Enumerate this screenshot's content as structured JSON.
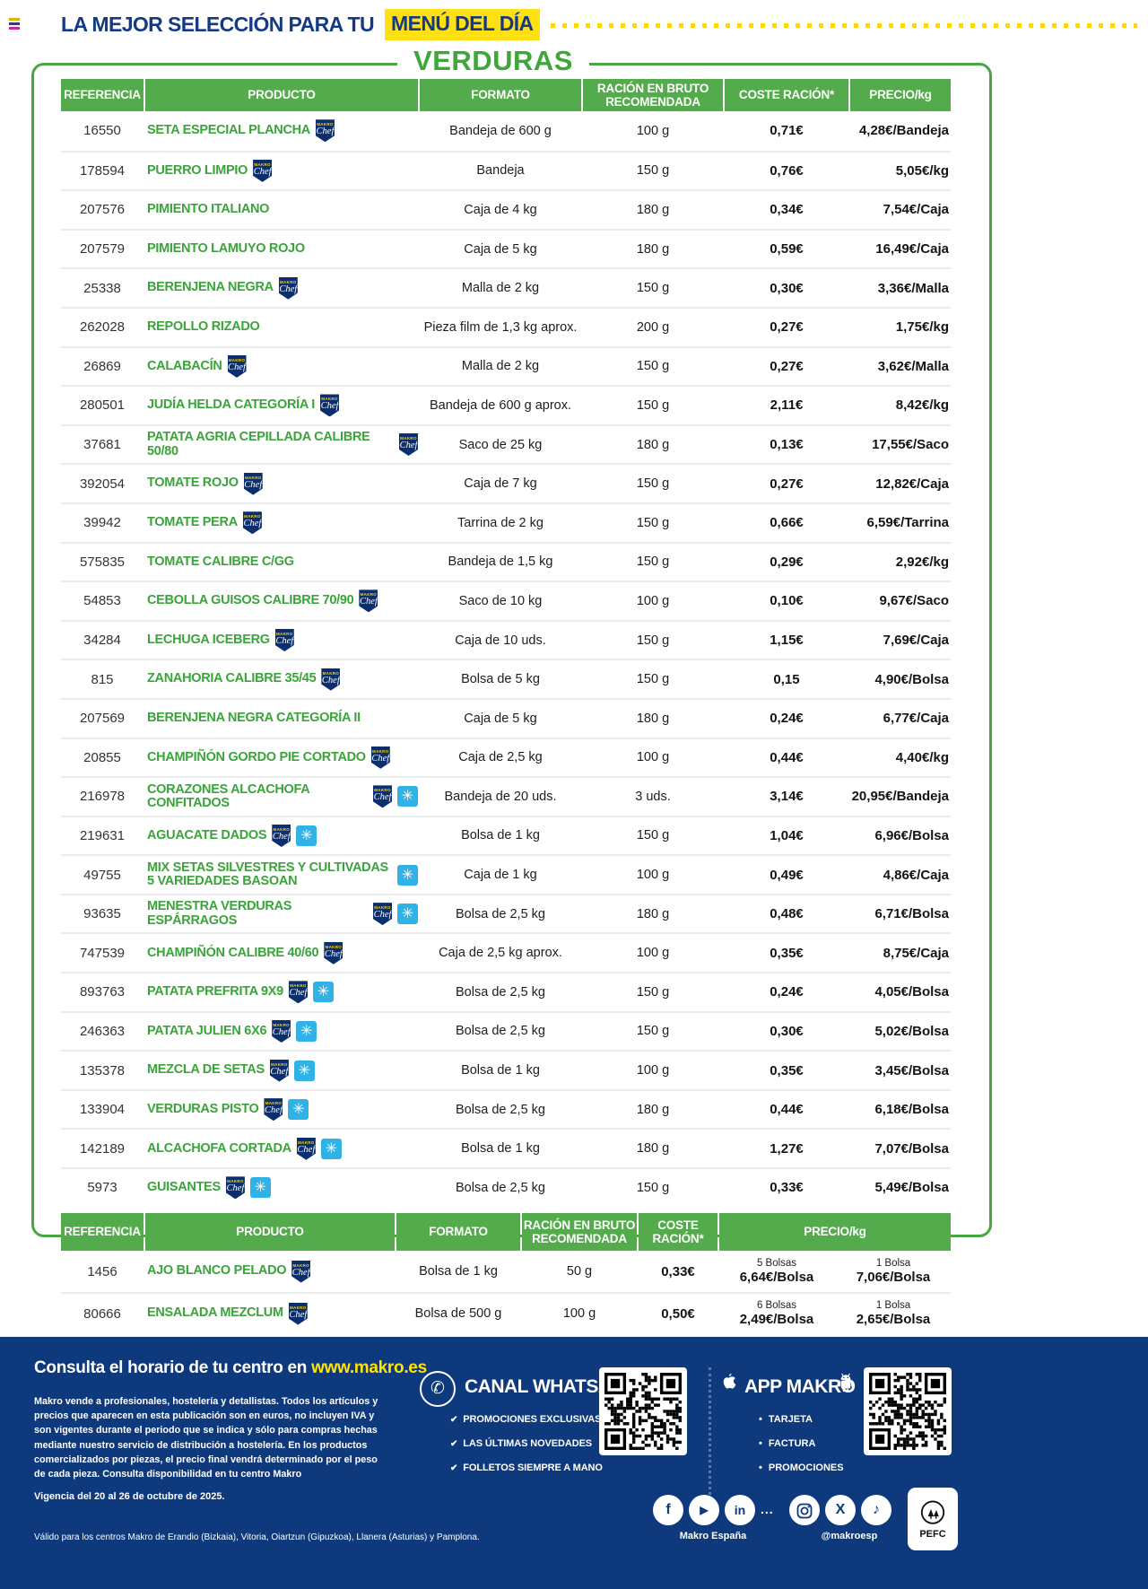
{
  "header": {
    "tagline_prefix": "LA MEJOR SELECCIÓN PARA TU",
    "tagline_highlight": "MENÚ DEL DÍA",
    "section_title": "VERDURAS"
  },
  "table_main": {
    "columns": [
      "REFERENCIA",
      "PRODUCTO",
      "FORMATO",
      "RACIÓN EN BRUTO\nRECOMENDADA",
      "COSTE RACIÓN*",
      "PRECIO/kg"
    ],
    "rows": [
      {
        "ref": "16550",
        "product": "SETA ESPECIAL PLANCHA",
        "badges": [
          "chef"
        ],
        "formato": "Bandeja de 600 g",
        "racion": "100 g",
        "coste": "0,71€",
        "precio": "4,28€/Bandeja"
      },
      {
        "ref": "178594",
        "product": "PUERRO LIMPIO",
        "badges": [
          "chef"
        ],
        "formato": "Bandeja",
        "racion": "150 g",
        "coste": "0,76€",
        "precio": "5,05€/kg"
      },
      {
        "ref": "207576",
        "product": "PIMIENTO ITALIANO",
        "badges": [],
        "formato": "Caja de 4 kg",
        "racion": "180 g",
        "coste": "0,34€",
        "precio": "7,54€/Caja"
      },
      {
        "ref": "207579",
        "product": "PIMIENTO LAMUYO ROJO",
        "badges": [],
        "formato": "Caja de 5 kg",
        "racion": "180 g",
        "coste": "0,59€",
        "precio": "16,49€/Caja"
      },
      {
        "ref": "25338",
        "product": "BERENJENA NEGRA",
        "badges": [
          "chef"
        ],
        "formato": "Malla de 2 kg",
        "racion": "150 g",
        "coste": "0,30€",
        "precio": "3,36€/Malla"
      },
      {
        "ref": "262028",
        "product": "REPOLLO RIZADO",
        "badges": [],
        "formato": "Pieza film de 1,3 kg aprox.",
        "racion": "200 g",
        "coste": "0,27€",
        "precio": "1,75€/kg"
      },
      {
        "ref": "26869",
        "product": "CALABACÍN",
        "badges": [
          "chef"
        ],
        "formato": "Malla de 2 kg",
        "racion": "150 g",
        "coste": "0,27€",
        "precio": "3,62€/Malla"
      },
      {
        "ref": "280501",
        "product": "JUDÍA HELDA CATEGORÍA I",
        "badges": [
          "chef"
        ],
        "formato": "Bandeja de 600 g aprox.",
        "racion": "150 g",
        "coste": "2,11€",
        "precio": "8,42€/kg"
      },
      {
        "ref": "37681",
        "product": "PATATA AGRIA CEPILLADA CALIBRE 50/80",
        "badges": [
          "chef"
        ],
        "formato": "Saco de 25 kg",
        "racion": "180 g",
        "coste": "0,13€",
        "precio": "17,55€/Saco"
      },
      {
        "ref": "392054",
        "product": "TOMATE ROJO",
        "badges": [
          "chef"
        ],
        "formato": "Caja de 7 kg",
        "racion": "150 g",
        "coste": "0,27€",
        "precio": "12,82€/Caja"
      },
      {
        "ref": "39942",
        "product": "TOMATE PERA",
        "badges": [
          "chef"
        ],
        "formato": "Tarrina de 2 kg",
        "racion": "150 g",
        "coste": "0,66€",
        "precio": "6,59€/Tarrina"
      },
      {
        "ref": "575835",
        "product": "TOMATE CALIBRE C/GG",
        "badges": [],
        "formato": "Bandeja de 1,5 kg",
        "racion": "150 g",
        "coste": "0,29€",
        "precio": "2,92€/kg"
      },
      {
        "ref": "54853",
        "product": "CEBOLLA GUISOS CALIBRE 70/90",
        "badges": [
          "chef"
        ],
        "formato": "Saco de 10 kg",
        "racion": "100 g",
        "coste": "0,10€",
        "precio": "9,67€/Saco"
      },
      {
        "ref": "34284",
        "product": "LECHUGA ICEBERG",
        "badges": [
          "chef"
        ],
        "formato": "Caja de 10 uds.",
        "racion": "150 g",
        "coste": "1,15€",
        "precio": "7,69€/Caja"
      },
      {
        "ref": "815",
        "product": "ZANAHORIA CALIBRE 35/45",
        "badges": [
          "chef"
        ],
        "formato": "Bolsa de 5 kg",
        "racion": "150 g",
        "coste": "0,15",
        "precio": "4,90€/Bolsa"
      },
      {
        "ref": "207569",
        "product": "BERENJENA NEGRA CATEGORÍA II",
        "badges": [],
        "formato": "Caja de 5 kg",
        "racion": "180 g",
        "coste": "0,24€",
        "precio": "6,77€/Caja"
      },
      {
        "ref": "20855",
        "product": "CHAMPIÑÓN GORDO PIE CORTADO",
        "badges": [
          "chef"
        ],
        "formato": "Caja de 2,5 kg",
        "racion": "100 g",
        "coste": "0,44€",
        "precio": "4,40€/kg"
      },
      {
        "ref": "216978",
        "product": "CORAZONES ALCACHOFA CONFITADOS",
        "badges": [
          "chef",
          "frozen"
        ],
        "formato": "Bandeja de 20 uds.",
        "racion": "3 uds.",
        "coste": "3,14€",
        "precio": "20,95€/Bandeja"
      },
      {
        "ref": "219631",
        "product": "AGUACATE DADOS",
        "badges": [
          "chef",
          "frozen"
        ],
        "formato": "Bolsa de 1 kg",
        "racion": "150 g",
        "coste": "1,04€",
        "precio": "6,96€/Bolsa"
      },
      {
        "ref": "49755",
        "product": "MIX SETAS SILVESTRES Y CULTIVADAS 5 VARIEDADES BASOAN",
        "badges": [
          "frozen"
        ],
        "formato": "Caja de 1 kg",
        "racion": "100 g",
        "coste": "0,49€",
        "precio": "4,86€/Caja"
      },
      {
        "ref": "93635",
        "product": "MENESTRA VERDURAS ESPÁRRAGOS",
        "badges": [
          "chef",
          "frozen"
        ],
        "formato": "Bolsa de 2,5 kg",
        "racion": "180 g",
        "coste": "0,48€",
        "precio": "6,71€/Bolsa"
      },
      {
        "ref": "747539",
        "product": "CHAMPIÑÓN CALIBRE 40/60",
        "badges": [
          "chef"
        ],
        "formato": "Caja de 2,5 kg aprox.",
        "racion": "100 g",
        "coste": "0,35€",
        "precio": "8,75€/Caja"
      },
      {
        "ref": "893763",
        "product": "PATATA PREFRITA 9X9",
        "badges": [
          "chef",
          "frozen"
        ],
        "formato": "Bolsa de 2,5 kg",
        "racion": "150 g",
        "coste": "0,24€",
        "precio": "4,05€/Bolsa"
      },
      {
        "ref": "246363",
        "product": "PATATA JULIEN 6X6",
        "badges": [
          "chef",
          "frozen"
        ],
        "formato": "Bolsa de 2,5 kg",
        "racion": "150 g",
        "coste": "0,30€",
        "precio": "5,02€/Bolsa"
      },
      {
        "ref": "135378",
        "product": "MEZCLA DE SETAS",
        "badges": [
          "chef",
          "frozen"
        ],
        "formato": "Bolsa de 1 kg",
        "racion": "100 g",
        "coste": "0,35€",
        "precio": "3,45€/Bolsa"
      },
      {
        "ref": "133904",
        "product": "VERDURAS PISTO",
        "badges": [
          "chef",
          "frozen"
        ],
        "formato": "Bolsa de 2,5 kg",
        "racion": "180 g",
        "coste": "0,44€",
        "precio": "6,18€/Bolsa"
      },
      {
        "ref": "142189",
        "product": "ALCACHOFA CORTADA",
        "badges": [
          "chef",
          "frozen"
        ],
        "formato": "Bolsa de 1 kg",
        "racion": "180 g",
        "coste": "1,27€",
        "precio": "7,07€/Bolsa"
      },
      {
        "ref": "5973",
        "product": "GUISANTES",
        "badges": [
          "chef",
          "frozen"
        ],
        "formato": "Bolsa de 2,5 kg",
        "racion": "150 g",
        "coste": "0,33€",
        "precio": "5,49€/Bolsa"
      }
    ]
  },
  "table_multi": {
    "columns": [
      "REFERENCIA",
      "PRODUCTO",
      "FORMATO",
      "RACIÓN EN BRUTO\nRECOMENDADA",
      "COSTE\nRACIÓN*",
      "PRECIO/kg"
    ],
    "rows": [
      {
        "ref": "1456",
        "product": "AJO BLANCO PELADO",
        "badges": [
          "chef"
        ],
        "formato": "Bolsa de 1 kg",
        "racion": "50 g",
        "coste": "0,33€",
        "precio_multi_label": "5 Bolsas",
        "precio_multi": "6,64€/Bolsa",
        "precio_single_label": "1 Bolsa",
        "precio_single": "7,06€/Bolsa"
      },
      {
        "ref": "80666",
        "product": "ENSALADA MEZCLUM",
        "badges": [
          "chef"
        ],
        "formato": "Bolsa de 500 g",
        "racion": "100 g",
        "coste": "0,50€",
        "precio_multi_label": "6 Bolsas",
        "precio_multi": "2,49€/Bolsa",
        "precio_single_label": "1 Bolsa",
        "precio_single": "2,65€/Bolsa"
      }
    ]
  },
  "badges": {
    "chef_top": "MAKRO",
    "chef_script": "Chef",
    "frozen_glyph": "✳"
  },
  "icons": {
    "whatsapp": "✆",
    "facebook": "f",
    "youtube": "▶",
    "linkedin": "in",
    "x": "X",
    "tiktok": "♪",
    "check": "✔",
    "bullet": "•"
  },
  "colors": {
    "makro_blue": "#0e3a7d",
    "green": "#4aa643",
    "green_header": "#54ab4b",
    "green_text": "#3aa43a",
    "yellow": "#ffe013",
    "frozen_blue": "#30b2e7"
  },
  "footer": {
    "hours_text": "Consulta el horario de tu centro en",
    "hours_link": "www.makro.es",
    "legal": "Makro vende a profesionales, hostelería y detallistas. Todos los artículos y precios que aparecen en esta publicación son en euros, no incluyen IVA y son vigentes durante el periodo que se indica y sólo para compras hechas mediante nuestro servicio de distribución a hostelería. En los productos comercializados por piezas, el precio final vendrá determinado por el peso de cada pieza. Consulta disponibilidad en tu centro Makro",
    "validity": "Vigencia del 20 al 26 de octubre de 2025.",
    "centers": "Válido para los centros Makro de Erandio (Bizkaia), Vitoria, Oiartzun (Gipuzkoa), Llanera (Asturias) y Pamplona.",
    "whatsapp": {
      "title": "CANAL WHATSAPP",
      "items": [
        "PROMOCIONES EXCLUSIVAS",
        "LAS ÚLTIMAS NOVEDADES",
        "FOLLETOS SIEMPRE A MANO"
      ]
    },
    "app": {
      "title": "APP MAKRO",
      "items": [
        "TARJETA",
        "FACTURA",
        "PROMOCIONES"
      ]
    },
    "social_separator": "...",
    "social_left_label": "Makro España",
    "social_right_label": "@makroesp",
    "pefc_label": "PEFC"
  }
}
